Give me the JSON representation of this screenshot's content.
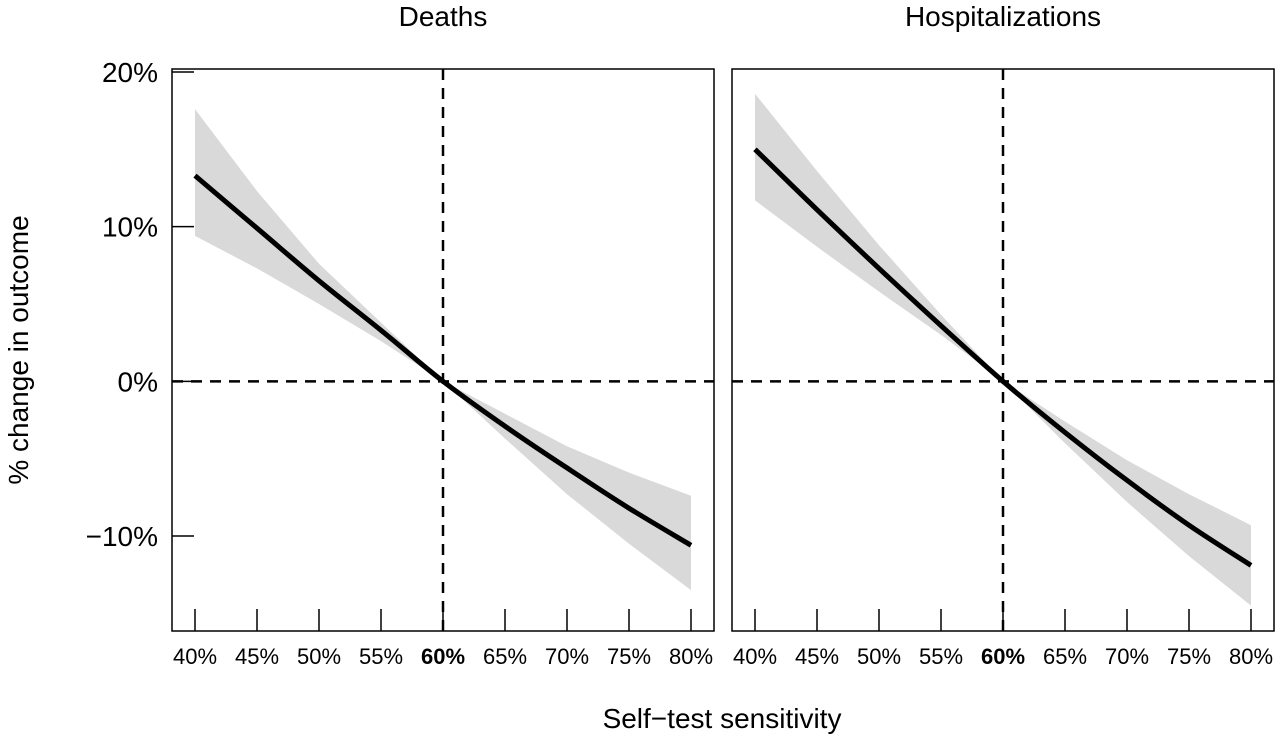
{
  "chart_data": [
    {
      "type": "line",
      "title": "Deaths",
      "x": [
        0.4,
        0.45,
        0.5,
        0.55,
        0.6,
        0.65,
        0.7,
        0.75,
        0.8
      ],
      "xlim": [
        0.38,
        0.82
      ],
      "ylim": [
        -16,
        20.5
      ],
      "reference_lines": {
        "x": 0.6,
        "y": 0
      },
      "series": [
        {
          "y": [
            13.3,
            9.9,
            6.5,
            3.3,
            0.0,
            -2.9,
            -5.6,
            -8.2,
            -10.6
          ],
          "lower": [
            9.4,
            7.3,
            5.0,
            2.6,
            0.0,
            -3.7,
            -7.3,
            -10.5,
            -13.5
          ],
          "upper": [
            17.6,
            12.3,
            7.6,
            3.8,
            0.0,
            -2.1,
            -4.2,
            -5.9,
            -7.4
          ]
        }
      ]
    },
    {
      "type": "line",
      "title": "Hospitalizations",
      "x": [
        0.4,
        0.45,
        0.5,
        0.55,
        0.6,
        0.65,
        0.7,
        0.75,
        0.8
      ],
      "xlim": [
        0.38,
        0.82
      ],
      "ylim": [
        -16,
        20.5
      ],
      "reference_lines": {
        "x": 0.6,
        "y": 0
      },
      "series": [
        {
          "y": [
            15.0,
            11.1,
            7.3,
            3.6,
            0.0,
            -3.3,
            -6.4,
            -9.3,
            -11.9
          ],
          "lower": [
            11.7,
            8.7,
            5.8,
            3.0,
            0.0,
            -4.0,
            -7.8,
            -11.3,
            -14.5
          ],
          "upper": [
            18.6,
            13.6,
            8.8,
            4.3,
            0.0,
            -2.6,
            -5.1,
            -7.3,
            -9.3
          ]
        }
      ]
    }
  ],
  "labels": {
    "ylabel": "% change in outcome",
    "xlabel": "Self−test sensitivity",
    "xticks": [
      "40%",
      "45%",
      "50%",
      "55%",
      "60%",
      "65%",
      "70%",
      "75%",
      "80%"
    ],
    "yticks": [
      "20%",
      "10%",
      "0%",
      "−10%"
    ],
    "ytick_values": [
      20,
      10,
      0,
      -10
    ]
  },
  "colors": {
    "line": "#000000",
    "band": "#d9d9d9",
    "frame": "#000000"
  }
}
